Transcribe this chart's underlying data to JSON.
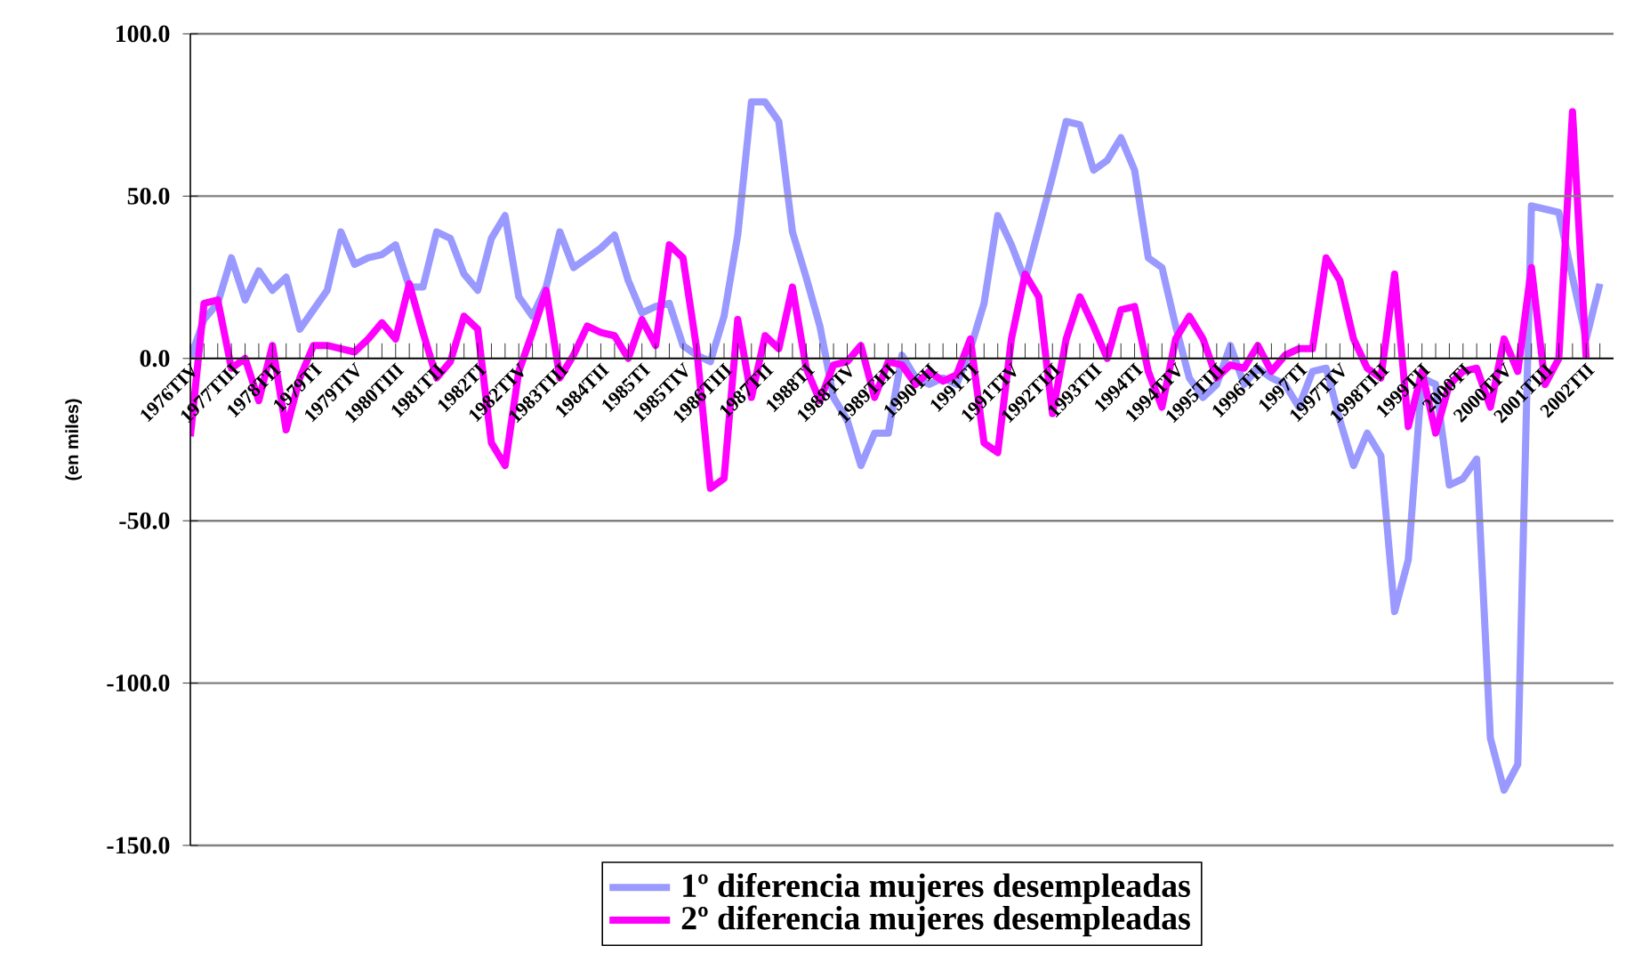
{
  "chart_data": {
    "type": "line",
    "ylabel": "(en miles)",
    "categories": [
      "1976TIV",
      null,
      null,
      "1977TIII",
      null,
      null,
      "1978TII",
      null,
      null,
      "1979TI",
      null,
      null,
      "1979TIV",
      null,
      null,
      "1980TIII",
      null,
      null,
      "1981TII",
      null,
      null,
      "1982TI",
      null,
      null,
      "1982TIV",
      null,
      null,
      "1983TIII",
      null,
      null,
      "1984TII",
      null,
      null,
      "1985TI",
      null,
      null,
      "1985TIV",
      null,
      null,
      "1986TIII",
      null,
      null,
      "1987TII",
      null,
      null,
      "1988TI",
      null,
      null,
      "1988TIV",
      null,
      null,
      "1989TIII",
      null,
      null,
      "1990TII",
      null,
      null,
      "1991TI",
      null,
      null,
      "1991TIV",
      null,
      null,
      "1992TIII",
      null,
      null,
      "1993TII",
      null,
      null,
      "1994TI",
      null,
      null,
      "1994TIV",
      null,
      null,
      "1995TIII",
      null,
      null,
      "1996TII",
      null,
      null,
      "1997TI",
      null,
      null,
      "1997TIV",
      null,
      null,
      "1998TIII",
      null,
      null,
      "1999TII",
      null,
      null,
      "2000TI",
      null,
      null,
      "2000TIV",
      null,
      null,
      "2001TIII",
      null,
      null,
      "2002TII",
      null
    ],
    "series": [
      {
        "name": "1º diferencia mujeres desempleadas",
        "color": "#9999ff",
        "values": [
          0,
          12,
          17,
          31,
          18,
          27,
          21,
          25,
          9,
          15,
          21,
          39,
          29,
          31,
          32,
          35,
          22,
          22,
          39,
          37,
          26,
          21,
          37,
          44,
          19,
          13,
          22,
          39,
          28,
          31,
          34,
          38,
          24,
          14,
          16,
          17,
          4,
          1,
          -1,
          13,
          38,
          79,
          79,
          73,
          39,
          25,
          10,
          -12,
          -19,
          -33,
          -23,
          -23,
          1,
          -6,
          -8,
          -6,
          -8,
          3,
          17,
          44,
          35,
          24,
          40,
          56,
          73,
          72,
          58,
          61,
          68,
          58,
          31,
          28,
          10,
          -6,
          -12,
          -8,
          4,
          -8,
          -3,
          -6,
          -8,
          -15,
          -4,
          -3,
          -19,
          -33,
          -23,
          -30,
          -78,
          -62,
          -6,
          -8,
          -39,
          -37,
          -31,
          -117,
          -133,
          -125,
          47,
          46,
          45,
          25,
          6,
          23
        ]
      },
      {
        "name": "2º diferencia mujeres desempleadas",
        "color": "#ff00ff",
        "values": [
          -24,
          17,
          18,
          -3,
          0,
          -13,
          4,
          -22,
          -6,
          4,
          4,
          3,
          2,
          6,
          11,
          6,
          23,
          8,
          -6,
          -1,
          13,
          9,
          -26,
          -33,
          -4,
          8,
          21,
          -6,
          1,
          10,
          8,
          7,
          0,
          12,
          4,
          35,
          31,
          3,
          -40,
          -37,
          12,
          -12,
          7,
          3,
          22,
          -3,
          -13,
          -2,
          -1,
          4,
          -12,
          -1,
          -2,
          -8,
          -4,
          -7,
          -5,
          6,
          -26,
          -29,
          6,
          26,
          19,
          -17,
          6,
          19,
          10,
          0,
          15,
          16,
          -4,
          -15,
          6,
          13,
          6,
          -6,
          -2,
          -3,
          4,
          -4,
          1,
          3,
          3,
          31,
          24,
          6,
          -3,
          -6,
          26,
          -21,
          -4,
          -23,
          -8,
          -4,
          -3,
          -15,
          6,
          -4,
          28,
          -8,
          0,
          76,
          0,
          null
        ]
      }
    ],
    "ylim": [
      -150,
      100
    ],
    "yticks": [
      {
        "value": -150,
        "label": "-150.0"
      },
      {
        "value": -100,
        "label": "-100.0"
      },
      {
        "value": -50,
        "label": "-50.0"
      },
      {
        "value": 0,
        "label": "0.0"
      },
      {
        "value": 50,
        "label": "50.0"
      },
      {
        "value": 100,
        "label": "100.0"
      }
    ],
    "grid": "y",
    "legend": "bottom",
    "marker": "none",
    "line_style": "solid"
  }
}
